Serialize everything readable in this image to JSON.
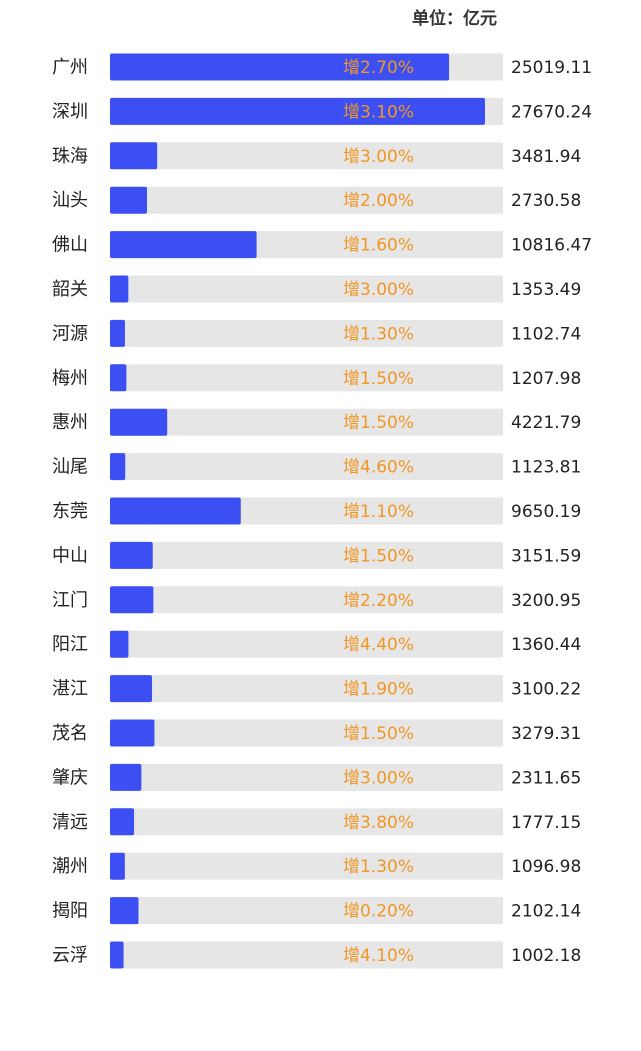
{
  "unit_label": "单位：亿元",
  "colors": {
    "bar": "#3b4ff2",
    "track": "#e6e6e6",
    "growth_text": "#f29624",
    "label_text": "#222222"
  },
  "chart_data": {
    "type": "bar",
    "orientation": "horizontal",
    "unit": "亿元",
    "xlim": [
      0,
      29000
    ],
    "categories": [
      "广州",
      "深圳",
      "珠海",
      "汕头",
      "佛山",
      "韶关",
      "河源",
      "梅州",
      "惠州",
      "汕尾",
      "东莞",
      "中山",
      "江门",
      "阳江",
      "湛江",
      "茂名",
      "肇庆",
      "清远",
      "潮州",
      "揭阳",
      "云浮"
    ],
    "values": [
      25019.11,
      27670.24,
      3481.94,
      2730.58,
      10816.47,
      1353.49,
      1102.74,
      1207.98,
      4221.79,
      1123.81,
      9650.19,
      3151.59,
      3200.95,
      1360.44,
      3100.22,
      3279.31,
      2311.65,
      1777.15,
      1096.98,
      2102.14,
      1002.18
    ],
    "value_labels": [
      "25019.11",
      "27670.24",
      "3481.94",
      "2730.58",
      "10816.47",
      "1353.49",
      "1102.74",
      "1207.98",
      "4221.79",
      "1123.81",
      "9650.19",
      "3151.59",
      "3200.95",
      "1360.44",
      "3100.22",
      "3279.31",
      "2311.65",
      "1777.15",
      "1096.98",
      "2102.14",
      "1002.18"
    ],
    "growth_labels": [
      "增2.70%",
      "增3.10%",
      "增3.00%",
      "增2.00%",
      "增1.60%",
      "增3.00%",
      "增1.30%",
      "增1.50%",
      "增1.50%",
      "增4.60%",
      "增1.10%",
      "增1.50%",
      "增2.20%",
      "增4.40%",
      "增1.90%",
      "增1.50%",
      "增3.00%",
      "增3.80%",
      "增1.30%",
      "增0.20%",
      "增4.10%"
    ]
  }
}
